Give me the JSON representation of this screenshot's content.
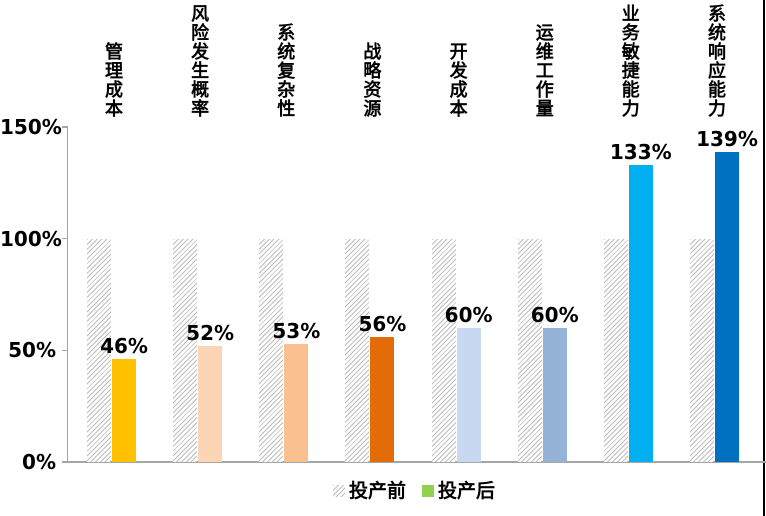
{
  "page": {
    "background": "#ffffff",
    "right_edge_line_color": "#000000"
  },
  "chart_data": {
    "type": "bar",
    "title": "",
    "categories": [
      "管理成本",
      "风险发生概率",
      "系统复杂性",
      "战略资源",
      "开发成本",
      "运维工作量",
      "业务敏捷能力",
      "系统响应能力"
    ],
    "series": [
      {
        "name": "投产前",
        "values": [
          100,
          100,
          100,
          100,
          100,
          100,
          100,
          100
        ],
        "style": "hatched",
        "hatch_line_color": "#BDBDBD"
      },
      {
        "name": "投产后",
        "values": [
          46,
          52,
          53,
          56,
          60,
          60,
          133,
          139
        ],
        "colors": [
          "#FFC000",
          "#FCD5B4",
          "#FAC090",
          "#E36C09",
          "#C6D9F0",
          "#95B3D7",
          "#00B0F0",
          "#0070C0"
        ]
      }
    ],
    "data_labels": [
      "46%",
      "52%",
      "53%",
      "56%",
      "60%",
      "60%",
      "133%",
      "139%"
    ],
    "y_axis": {
      "ticks": [
        {
          "label": "150%",
          "value": 150
        },
        {
          "label": "100%",
          "value": 100
        },
        {
          "label": "50%",
          "value": 50
        },
        {
          "label": "0%",
          "value": 0
        }
      ],
      "range": [
        0,
        150
      ],
      "axis_color": "#A6A6A6"
    },
    "grid": false,
    "legend": {
      "position": "bottom-center",
      "items": [
        {
          "label": "投产前",
          "swatch": "hatched"
        },
        {
          "label": "投产后",
          "swatch_color": "#92D050"
        }
      ]
    }
  }
}
